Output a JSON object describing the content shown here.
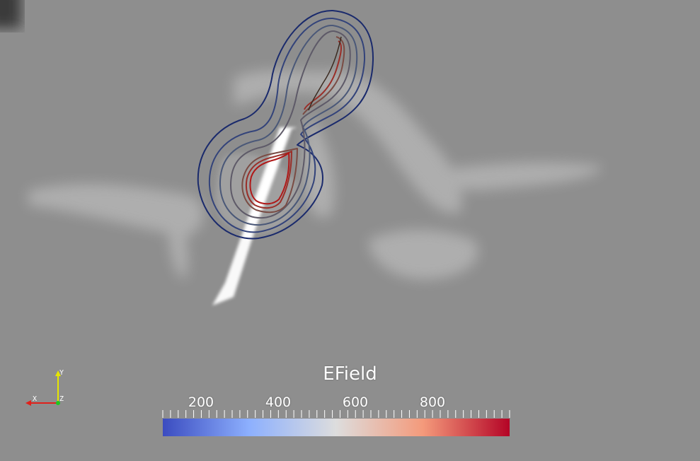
{
  "scene": {
    "background_color": "#8e8e8e",
    "contour_colors": [
      "#1a2a6c",
      "#3a4a7a",
      "#5a6478",
      "#6b5a5a",
      "#8a4a3a",
      "#a0302a",
      "#b01818"
    ]
  },
  "scalar_bar": {
    "title": "EField",
    "ticks": [
      "200",
      "400",
      "600",
      "800"
    ],
    "colormap": "cool-to-warm",
    "colors": [
      "#3b4cc0",
      "#dddddd",
      "#b40426"
    ]
  },
  "orientation_axes": {
    "x_label": "X",
    "y_label": "Y",
    "z_label": "Z",
    "x_color": "#e0201a",
    "y_color": "#e6e600",
    "z_color": "#1ec81e"
  }
}
